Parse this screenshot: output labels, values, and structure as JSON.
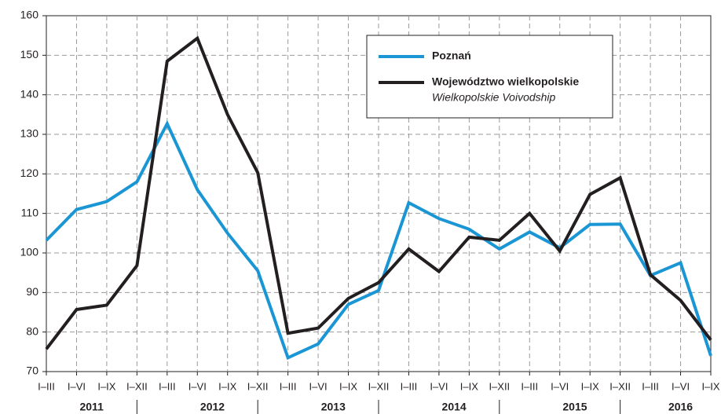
{
  "chart_data": {
    "type": "line",
    "groups": [
      {
        "year": "2011",
        "quarters": [
          "I–III",
          "I–VI",
          "I–IX",
          "I–XII"
        ]
      },
      {
        "year": "2012",
        "quarters": [
          "I–III",
          "I–VI",
          "I–IX",
          "I–XII"
        ]
      },
      {
        "year": "2013",
        "quarters": [
          "I–III",
          "I–VI",
          "I–IX",
          "I–XII"
        ]
      },
      {
        "year": "2014",
        "quarters": [
          "I–III",
          "I–VI",
          "I–IX",
          "I–XII"
        ]
      },
      {
        "year": "2015",
        "quarters": [
          "I–III",
          "I–VI",
          "I–IX",
          "I–XII"
        ]
      },
      {
        "year": "2016",
        "quarters": [
          "I–III",
          "I–VI",
          "I–IX"
        ]
      }
    ],
    "series": [
      {
        "name": "Poznań",
        "color": "#1a96d4",
        "values": [
          103.2,
          111,
          113,
          118,
          132.7,
          116,
          105,
          95.5,
          73.5,
          77,
          87,
          90.5,
          112.7,
          108.7,
          106,
          101,
          105.3,
          101.3,
          107.2,
          107.3,
          94.3,
          97.5,
          74
        ]
      },
      {
        "name": "Województwo wielkopolskie",
        "name_en": "Wielkopolskie Voivodship",
        "color": "#231f20",
        "values": [
          75.7,
          85.7,
          86.8,
          96.8,
          148.5,
          154.3,
          135,
          120.3,
          79.7,
          81,
          88.5,
          92.5,
          101,
          95.3,
          104,
          103.2,
          110,
          100.5,
          114.8,
          119,
          94.5,
          88,
          78
        ]
      }
    ],
    "ylim": [
      70,
      160
    ],
    "yticks": [
      70,
      80,
      90,
      100,
      110,
      120,
      130,
      140,
      150,
      160
    ],
    "grid": true
  }
}
